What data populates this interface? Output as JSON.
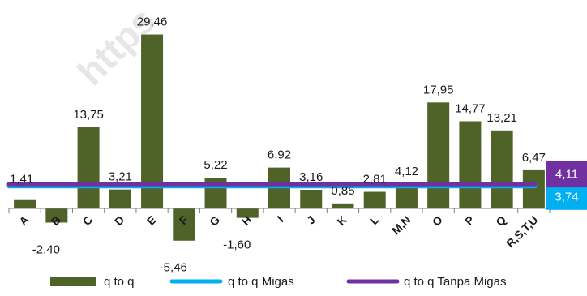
{
  "watermark": "https",
  "chart_data": {
    "type": "bar",
    "categories": [
      "A",
      "B",
      "C",
      "D",
      "E",
      "F",
      "G",
      "H",
      "I",
      "J",
      "K",
      "L",
      "M,N",
      "O",
      "P",
      "Q",
      "R,S,T,U"
    ],
    "series": [
      {
        "name": "q to q",
        "color": "#4f6228",
        "values": [
          1.41,
          -2.4,
          13.75,
          3.21,
          29.46,
          -5.46,
          5.22,
          -1.6,
          6.92,
          3.16,
          0.85,
          2.81,
          4.12,
          17.95,
          14.77,
          13.21,
          6.47
        ],
        "labels": [
          "1,41",
          "-2,40",
          "13,75",
          "3,21",
          "29,46",
          "-5,46",
          "5,22",
          "-1,60",
          "6,92",
          "3,16",
          "0,85",
          "2,81",
          "4,12",
          "17,95",
          "14,77",
          "13,21",
          "6,47"
        ]
      }
    ],
    "reference_lines": [
      {
        "name": "q to q Migas",
        "value": 3.74,
        "label": "3,74",
        "color": "#00b0f0"
      },
      {
        "name": "q to q Tanpa Migas",
        "value": 4.11,
        "label": "4,11",
        "color": "#7030a0"
      }
    ],
    "legend": {
      "position": "bottom",
      "items": [
        {
          "label": "q to q",
          "kind": "bar",
          "color": "#4f6228"
        },
        {
          "label": "q to q Migas",
          "kind": "line",
          "color": "#00b0f0"
        },
        {
          "label": "q to q Tanpa Migas",
          "kind": "line",
          "color": "#7030a0"
        }
      ]
    },
    "title": "",
    "xlabel": "",
    "ylabel": "",
    "ylim": [
      -6.5,
      31.5
    ],
    "grid": false
  }
}
